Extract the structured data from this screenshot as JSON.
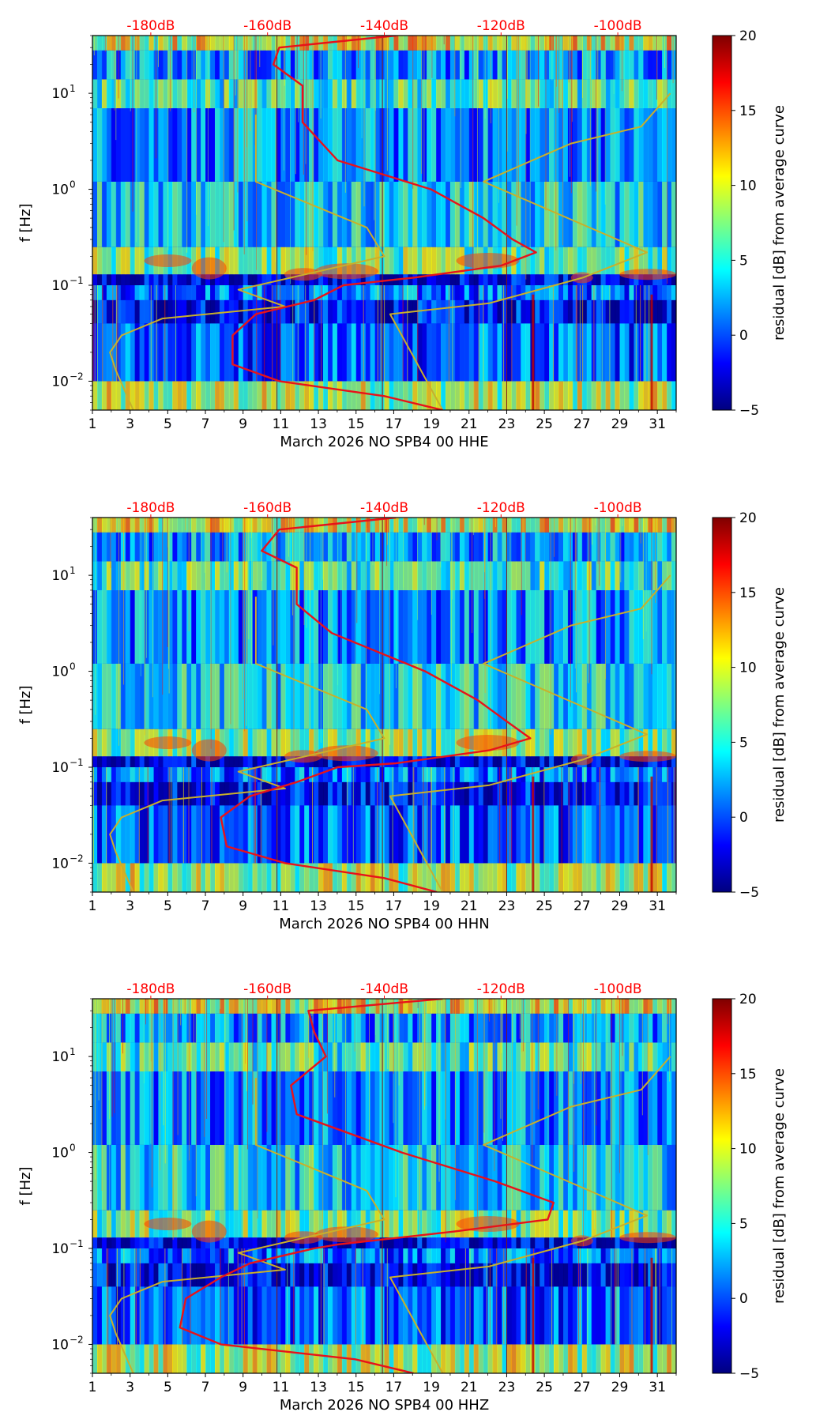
{
  "colorscale": [
    "#00007f",
    "#0000ff",
    "#007fff",
    "#00ffff",
    "#7fff7f",
    "#ffff00",
    "#ff7f00",
    "#ff0000",
    "#7f0000"
  ],
  "chart_data": [
    {
      "type": "heatmap",
      "xlabel": "March 2026 NO SPB4 00 HHE",
      "ylabel": "f [Hz]",
      "colorbar_label": "residual [dB] from average curve",
      "colorbar_range": [
        -5,
        20
      ],
      "colorbar_ticks": [
        "20",
        "15",
        "10",
        "5",
        "0",
        "−5"
      ],
      "x_range": [
        1,
        32
      ],
      "x_ticks": [
        "1",
        "3",
        "5",
        "7",
        "9",
        "11",
        "13",
        "15",
        "17",
        "19",
        "21",
        "23",
        "25",
        "27",
        "29",
        "31"
      ],
      "y_range_hz": [
        0.005,
        40
      ],
      "y_ticks": [
        {
          "base": "10",
          "exp": "1"
        },
        {
          "base": "10",
          "exp": "0"
        },
        {
          "base": "10",
          "exp": "−1"
        },
        {
          "base": "10",
          "exp": "−2"
        }
      ],
      "top_axis_labels": [
        "-180dB",
        "-160dB",
        "-140dB",
        "-120dB",
        "-100dB"
      ],
      "top_axis_color": "#ff0000",
      "top_axis_db_range": [
        -190,
        -90
      ],
      "line_colors": {
        "median": "#e8121a",
        "nlnm": "#c9b02a",
        "dark": "#7a1a1a"
      },
      "median_curve_db": [
        [
          -138,
          40
        ],
        [
          -158,
          30
        ],
        [
          -159,
          20
        ],
        [
          -154,
          12
        ],
        [
          -154,
          5
        ],
        [
          -148,
          2
        ],
        [
          -132,
          1
        ],
        [
          -123,
          0.5
        ],
        [
          -118,
          0.3
        ],
        [
          -114,
          0.22
        ],
        [
          -120,
          0.16
        ],
        [
          -135,
          0.12
        ],
        [
          -147,
          0.1
        ],
        [
          -152,
          0.07
        ],
        [
          -162,
          0.05
        ],
        [
          -166,
          0.03
        ],
        [
          -166,
          0.015
        ],
        [
          -158,
          0.01
        ],
        [
          -140,
          0.007
        ],
        [
          -130,
          0.005
        ]
      ],
      "nlnm_curve_db": [
        [
          -91,
          10
        ],
        [
          -96,
          4.5
        ],
        [
          -108,
          3
        ],
        [
          -123,
          1.2
        ],
        [
          -95,
          0.22
        ],
        [
          -106,
          0.12
        ],
        [
          -122,
          0.065
        ],
        [
          -139,
          0.05
        ],
        [
          -130,
          0.005
        ]
      ],
      "nhnm_curve_db": [
        [
          -162,
          6
        ],
        [
          -162,
          1.2
        ],
        [
          -143,
          0.4
        ],
        [
          -140,
          0.2
        ],
        [
          -165,
          0.09
        ],
        [
          -157,
          0.06
        ],
        [
          -178,
          0.045
        ],
        [
          -185,
          0.03
        ],
        [
          -187,
          0.02
        ],
        [
          -186,
          0.013
        ],
        [
          -183,
          0.005
        ]
      ],
      "vertical_lines_day": [
        10.8,
        16.4,
        23
      ]
    },
    {
      "type": "heatmap",
      "xlabel": "March 2026 NO SPB4 00 HHN",
      "ylabel": "f [Hz]",
      "colorbar_label": "residual [dB] from average curve",
      "colorbar_range": [
        -5,
        20
      ],
      "colorbar_ticks": [
        "20",
        "15",
        "10",
        "5",
        "0",
        "−5"
      ],
      "x_range": [
        1,
        32
      ],
      "x_ticks": [
        "1",
        "3",
        "5",
        "7",
        "9",
        "11",
        "13",
        "15",
        "17",
        "19",
        "21",
        "23",
        "25",
        "27",
        "29",
        "31"
      ],
      "y_range_hz": [
        0.005,
        40
      ],
      "y_ticks": [
        {
          "base": "10",
          "exp": "1"
        },
        {
          "base": "10",
          "exp": "0"
        },
        {
          "base": "10",
          "exp": "−1"
        },
        {
          "base": "10",
          "exp": "−2"
        }
      ],
      "top_axis_labels": [
        "-180dB",
        "-160dB",
        "-140dB",
        "-120dB",
        "-100dB"
      ],
      "top_axis_color": "#ff0000",
      "top_axis_db_range": [
        -190,
        -90
      ],
      "line_colors": {
        "median": "#e8121a",
        "nlnm": "#c9b02a",
        "dark": "#7a1a1a"
      },
      "median_curve_db": [
        [
          -138,
          40
        ],
        [
          -158,
          30
        ],
        [
          -161,
          18
        ],
        [
          -155,
          12
        ],
        [
          -155,
          5
        ],
        [
          -149,
          2.5
        ],
        [
          -133,
          1
        ],
        [
          -124,
          0.5
        ],
        [
          -119,
          0.3
        ],
        [
          -115,
          0.2
        ],
        [
          -122,
          0.15
        ],
        [
          -138,
          0.11
        ],
        [
          -148,
          0.1
        ],
        [
          -155,
          0.07
        ],
        [
          -163,
          0.05
        ],
        [
          -168,
          0.03
        ],
        [
          -167,
          0.015
        ],
        [
          -157,
          0.01
        ],
        [
          -140,
          0.007
        ],
        [
          -131,
          0.005
        ]
      ],
      "nlnm_curve_db": [
        [
          -91,
          10
        ],
        [
          -96,
          4.5
        ],
        [
          -108,
          3
        ],
        [
          -123,
          1.2
        ],
        [
          -95,
          0.22
        ],
        [
          -106,
          0.12
        ],
        [
          -122,
          0.065
        ],
        [
          -139,
          0.05
        ],
        [
          -130,
          0.005
        ]
      ],
      "nhnm_curve_db": [
        [
          -162,
          6
        ],
        [
          -162,
          1.2
        ],
        [
          -143,
          0.4
        ],
        [
          -140,
          0.2
        ],
        [
          -165,
          0.09
        ],
        [
          -157,
          0.06
        ],
        [
          -178,
          0.045
        ],
        [
          -185,
          0.03
        ],
        [
          -187,
          0.02
        ],
        [
          -186,
          0.013
        ],
        [
          -183,
          0.005
        ]
      ],
      "vertical_lines_day": [
        10.8,
        16.4,
        23
      ]
    },
    {
      "type": "heatmap",
      "xlabel": "March 2026 NO SPB4 00 HHZ",
      "ylabel": "f [Hz]",
      "colorbar_label": "residual [dB] from average curve",
      "colorbar_range": [
        -5,
        20
      ],
      "colorbar_ticks": [
        "20",
        "15",
        "10",
        "5",
        "0",
        "−5"
      ],
      "x_range": [
        1,
        32
      ],
      "x_ticks": [
        "1",
        "3",
        "5",
        "7",
        "9",
        "11",
        "13",
        "15",
        "17",
        "19",
        "21",
        "23",
        "25",
        "27",
        "29",
        "31"
      ],
      "y_range_hz": [
        0.005,
        40
      ],
      "y_ticks": [
        {
          "base": "10",
          "exp": "1"
        },
        {
          "base": "10",
          "exp": "0"
        },
        {
          "base": "10",
          "exp": "−1"
        },
        {
          "base": "10",
          "exp": "−2"
        }
      ],
      "top_axis_labels": [
        "-180dB",
        "-160dB",
        "-140dB",
        "-120dB",
        "-100dB"
      ],
      "top_axis_color": "#ff0000",
      "top_axis_db_range": [
        -190,
        -90
      ],
      "line_colors": {
        "median": "#e8121a",
        "nlnm": "#c9b02a",
        "dark": "#7a1a1a"
      },
      "median_curve_db": [
        [
          -130,
          40
        ],
        [
          -153,
          30
        ],
        [
          -152,
          18
        ],
        [
          -150,
          10
        ],
        [
          -156,
          5
        ],
        [
          -155,
          2.5
        ],
        [
          -137,
          1
        ],
        [
          -121,
          0.5
        ],
        [
          -111,
          0.3
        ],
        [
          -112,
          0.2
        ],
        [
          -128,
          0.15
        ],
        [
          -148,
          0.11
        ],
        [
          -152,
          0.1
        ],
        [
          -163,
          0.07
        ],
        [
          -168,
          0.05
        ],
        [
          -174,
          0.03
        ],
        [
          -175,
          0.015
        ],
        [
          -168,
          0.01
        ],
        [
          -145,
          0.007
        ],
        [
          -135,
          0.005
        ]
      ],
      "nlnm_curve_db": [
        [
          -91,
          10
        ],
        [
          -96,
          4.5
        ],
        [
          -108,
          3
        ],
        [
          -123,
          1.2
        ],
        [
          -95,
          0.22
        ],
        [
          -106,
          0.12
        ],
        [
          -122,
          0.065
        ],
        [
          -139,
          0.05
        ],
        [
          -130,
          0.005
        ]
      ],
      "nhnm_curve_db": [
        [
          -162,
          6
        ],
        [
          -162,
          1.2
        ],
        [
          -143,
          0.4
        ],
        [
          -140,
          0.2
        ],
        [
          -165,
          0.09
        ],
        [
          -157,
          0.06
        ],
        [
          -178,
          0.045
        ],
        [
          -185,
          0.03
        ],
        [
          -187,
          0.02
        ],
        [
          -186,
          0.013
        ],
        [
          -183,
          0.005
        ]
      ],
      "vertical_lines_day": [
        10.8,
        16.4,
        23
      ]
    }
  ]
}
